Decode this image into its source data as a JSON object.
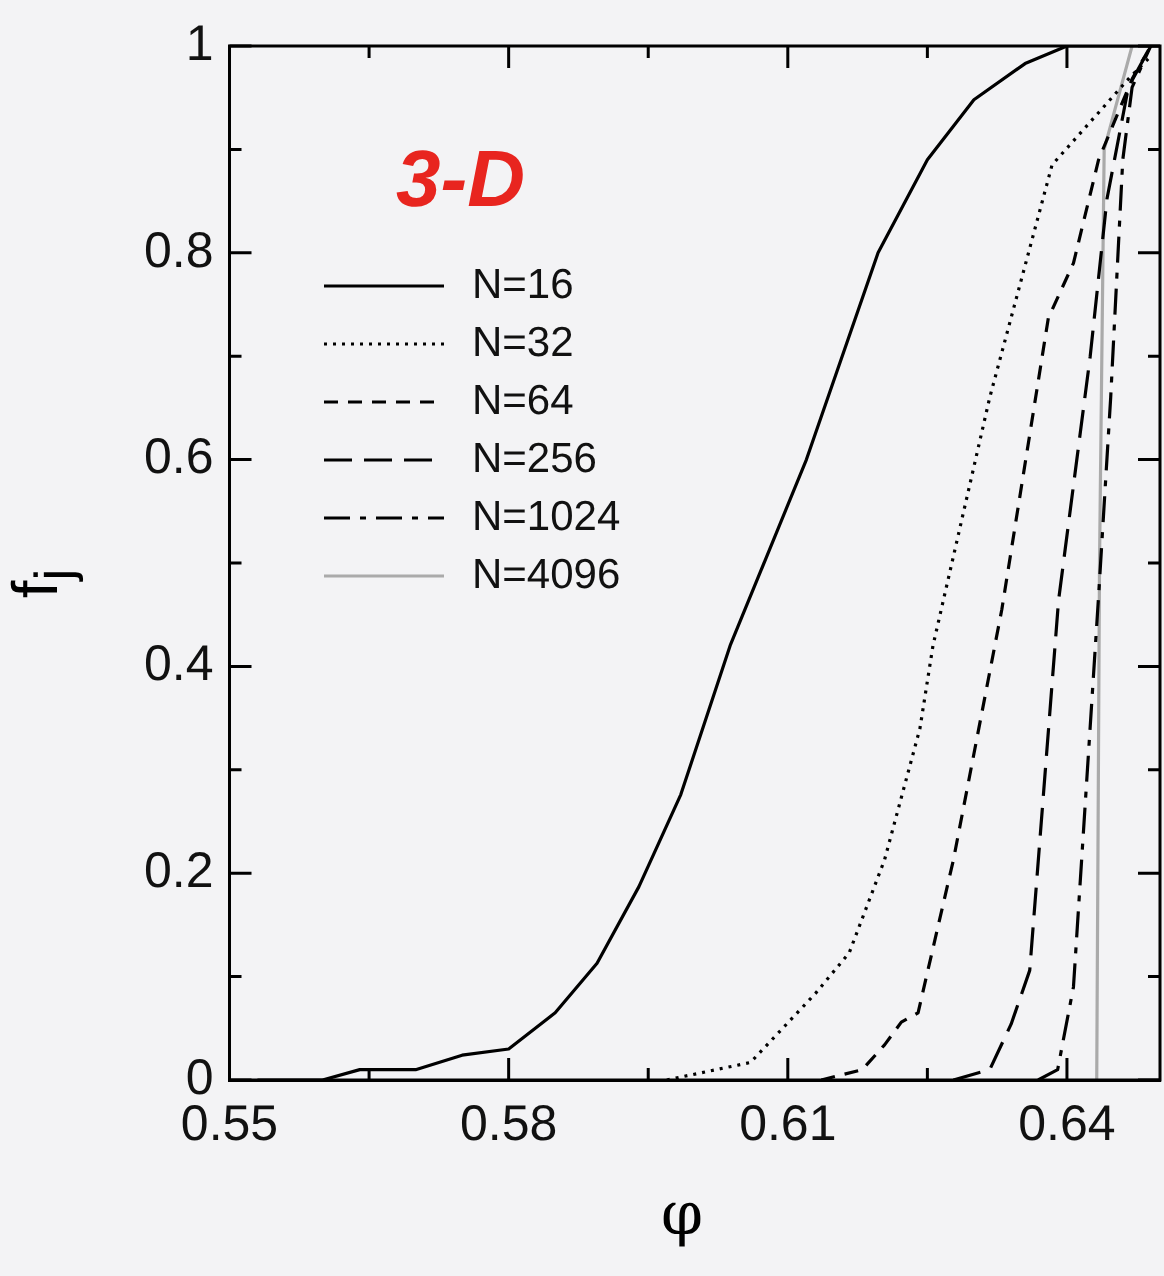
{
  "chart_data": {
    "type": "line",
    "xlabel": "φ",
    "ylabel": "f$_{j}$",
    "annotations": [
      "3-D"
    ],
    "legend": "top left",
    "xlim": [
      0.55,
      0.65
    ],
    "ylim": [
      0,
      1
    ],
    "xticks": [
      0.55,
      {
        "value": 0.565,
        "label": null
      },
      0.58,
      {
        "value": 0.595,
        "label": null
      },
      0.61,
      {
        "value": 0.625,
        "label": null
      },
      0.64
    ],
    "yticks": [
      0,
      {
        "value": 0.1,
        "label": null
      },
      0.2,
      {
        "value": 0.3,
        "label": null
      },
      0.4,
      {
        "value": 0.5,
        "label": null
      },
      0.6,
      {
        "value": 0.7,
        "label": null
      },
      0.8,
      {
        "value": 0.9,
        "label": null
      },
      1
    ],
    "series": [
      {
        "name": "N=16",
        "color": "#000000",
        "line_style": "solid",
        "x": [
          0.553,
          0.56,
          0.564,
          0.57,
          0.575,
          0.58,
          0.585,
          0.5895,
          0.594,
          0.5985,
          0.6038,
          0.612,
          0.6197,
          0.625,
          0.63,
          0.6355,
          0.64,
          0.645,
          0.65
        ],
        "values": [
          0,
          0,
          0.01,
          0.01,
          0.024,
          0.03,
          0.065,
          0.113,
          0.187,
          0.276,
          0.42,
          0.6,
          0.8,
          0.89,
          0.948,
          0.983,
          1,
          1,
          1
        ]
      },
      {
        "name": "N=32",
        "color": "#000000",
        "line_style": "dotted",
        "x": [
          0.597,
          0.606,
          0.613,
          0.6166,
          0.6204,
          0.6242,
          0.6256,
          0.6317,
          0.6384,
          0.6468,
          0.649
        ],
        "values": [
          0,
          0.017,
          0.084,
          0.123,
          0.213,
          0.34,
          0.42,
          0.66,
          0.885,
          0.97,
          0.99
        ]
      },
      {
        "name": "N=64",
        "color": "#000000",
        "line_style": "dashed",
        "x": [
          0.6136,
          0.618,
          0.6204,
          0.6222,
          0.624,
          0.6278,
          0.633,
          0.638,
          0.6407,
          0.6434,
          0.647,
          0.649
        ],
        "values": [
          0,
          0.01,
          0.034,
          0.056,
          0.065,
          0.213,
          0.455,
          0.737,
          0.79,
          0.89,
          0.968,
          1
        ]
      },
      {
        "name": "N=256",
        "color": "#000000",
        "line_style": "long_dashed",
        "x": [
          0.6278,
          0.6317,
          0.634,
          0.636,
          0.6391,
          0.6425,
          0.6443,
          0.6466,
          0.649
        ],
        "values": [
          0,
          0.01,
          0.054,
          0.106,
          0.464,
          0.7,
          0.852,
          0.96,
          1
        ]
      },
      {
        "name": "N=1024",
        "color": "#000000",
        "line_style": "dash_dot",
        "x": [
          0.6369,
          0.639,
          0.6407,
          0.6434,
          0.6447,
          0.646,
          0.647,
          0.649
        ],
        "values": [
          0,
          0.01,
          0.09,
          0.468,
          0.66,
          0.89,
          0.96,
          1
        ]
      },
      {
        "name": "N=4096",
        "color": "#aaaaaa",
        "line_style": "solid",
        "x": [
          0.6432,
          0.6435,
          0.644,
          0.647
        ],
        "values": [
          0,
          0.5,
          0.9,
          1
        ]
      }
    ]
  }
}
